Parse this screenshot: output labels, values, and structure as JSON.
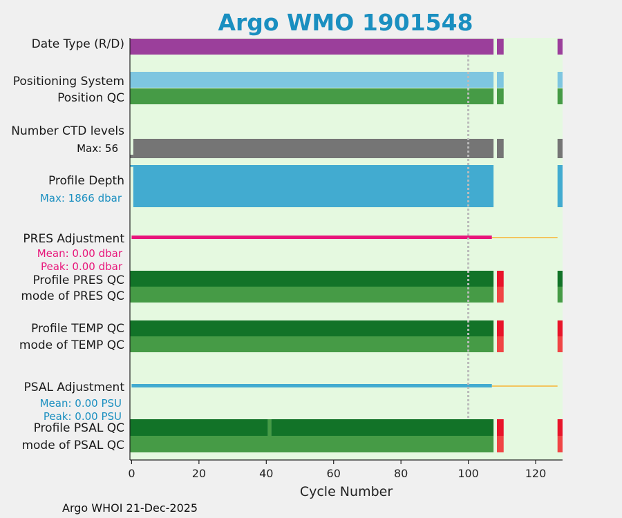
{
  "chart_data": {
    "type": "bar",
    "title": "Argo WMO 1901548",
    "xlabel": "Cycle Number",
    "xlim": [
      -0.5,
      128
    ],
    "xticks": [
      0,
      20,
      40,
      60,
      80,
      100,
      120
    ],
    "footer": "Argo WHOI 21-Dec-2025",
    "reference_line_cycle": 100,
    "colors": {
      "title": "#1a8fc0",
      "plot_bg": "#e5f9e0",
      "page_bg": "#f0f0f0",
      "date_type": "#9b3f9b",
      "positioning": "#7ec6e0",
      "qc_good": "#469b46",
      "qc_good_dark": "#127328",
      "ctd": "#757575",
      "depth": "#42abd0",
      "pres_adj": "#e8157a",
      "adj_line": "#f3c55e",
      "qc_bad": "#e8152a",
      "qc_bad_mode": "#f04545",
      "psal_adj": "#42abd0",
      "ref_line": "#bbbbbb",
      "subtitle_blue": "#1a8fc0"
    },
    "rows": [
      {
        "label": "Date Type (R/D)",
        "segments": [
          {
            "from": -0.5,
            "to": 107.5,
            "color": "date_type"
          },
          {
            "from": 108.5,
            "to": 110.5,
            "color": "date_type"
          },
          {
            "from": 126.5,
            "to": 128,
            "color": "date_type"
          }
        ]
      },
      {
        "label": "Positioning System",
        "segments": [
          {
            "from": -0.5,
            "to": 107.5,
            "color": "positioning"
          },
          {
            "from": 108.5,
            "to": 110.5,
            "color": "positioning"
          },
          {
            "from": 126.5,
            "to": 128,
            "color": "positioning"
          }
        ]
      },
      {
        "label": "Position QC",
        "segments": [
          {
            "from": -0.5,
            "to": 107.5,
            "color": "qc_good"
          },
          {
            "from": 108.5,
            "to": 110.5,
            "color": "qc_good"
          },
          {
            "from": 126.5,
            "to": 128,
            "color": "qc_good"
          }
        ]
      },
      {
        "label": "Number CTD levels",
        "segments": []
      },
      {
        "label": "Profile Depth",
        "segments": []
      },
      {
        "label": "PRES Adjustment",
        "segments": []
      },
      {
        "label": "Profile PRES QC",
        "segments": [
          {
            "from": -0.5,
            "to": 107.5,
            "color": "qc_good_dark"
          },
          {
            "from": 108.5,
            "to": 110.5,
            "color": "qc_bad"
          },
          {
            "from": 126.5,
            "to": 128,
            "color": "qc_good_dark"
          }
        ]
      },
      {
        "label": "mode of PRES QC",
        "segments": [
          {
            "from": -0.5,
            "to": 107.5,
            "color": "qc_good"
          },
          {
            "from": 108.5,
            "to": 110.5,
            "color": "qc_bad_mode"
          },
          {
            "from": 126.5,
            "to": 128,
            "color": "qc_good"
          }
        ]
      },
      {
        "label": "Profile TEMP QC",
        "segments": [
          {
            "from": -0.5,
            "to": 107.5,
            "color": "qc_good_dark"
          },
          {
            "from": 108.5,
            "to": 110.5,
            "color": "qc_bad"
          },
          {
            "from": 126.5,
            "to": 128,
            "color": "qc_bad"
          }
        ]
      },
      {
        "label": "mode of TEMP QC",
        "segments": [
          {
            "from": -0.5,
            "to": 107.5,
            "color": "qc_good"
          },
          {
            "from": 108.5,
            "to": 110.5,
            "color": "qc_bad_mode"
          },
          {
            "from": 126.5,
            "to": 128,
            "color": "qc_bad_mode"
          }
        ]
      },
      {
        "label": "PSAL Adjustment",
        "segments": []
      },
      {
        "label": "Profile PSAL QC",
        "segments": [
          {
            "from": -0.5,
            "to": 40.5,
            "color": "qc_good_dark"
          },
          {
            "from": 40.5,
            "to": 41.5,
            "color": "qc_good"
          },
          {
            "from": 41.5,
            "to": 107.5,
            "color": "qc_good_dark"
          },
          {
            "from": 108.5,
            "to": 110.5,
            "color": "qc_bad"
          },
          {
            "from": 126.5,
            "to": 128,
            "color": "qc_bad"
          }
        ]
      },
      {
        "label": "mode of PSAL QC",
        "segments": [
          {
            "from": -0.5,
            "to": 107.5,
            "color": "qc_good"
          },
          {
            "from": 108.5,
            "to": 110.5,
            "color": "qc_bad_mode"
          },
          {
            "from": 126.5,
            "to": 128,
            "color": "qc_bad_mode"
          }
        ]
      }
    ],
    "ctd_levels": {
      "max_label": "Max: 56",
      "max": 56,
      "series": [
        {
          "from": -0.5,
          "to": 0.5,
          "value": 10
        },
        {
          "from": 0.5,
          "to": 107.5,
          "value": 56
        },
        {
          "from": 108.5,
          "to": 110.5,
          "value": 56
        },
        {
          "from": 126.5,
          "to": 128,
          "value": 56
        }
      ]
    },
    "profile_depth": {
      "max_label": "Max: 1866 dbar",
      "max": 1866,
      "series": [
        {
          "from": -0.5,
          "to": 0.5,
          "value": 80
        },
        {
          "from": 0.5,
          "to": 107.5,
          "value": 1866
        },
        {
          "from": 126.5,
          "to": 128,
          "value": 1866
        }
      ]
    },
    "pres_adjustment": {
      "mean_label": "Mean: 0.00 dbar",
      "peak_label": "Peak: 0.00 dbar",
      "data_from": 0,
      "data_to": 107,
      "zero_to": 126.5
    },
    "psal_adjustment": {
      "mean_label": "Mean: 0.00 PSU",
      "peak_label": "Peak: 0.00 PSU",
      "data_from": 0,
      "data_to": 107,
      "zero_to": 126.5
    }
  }
}
